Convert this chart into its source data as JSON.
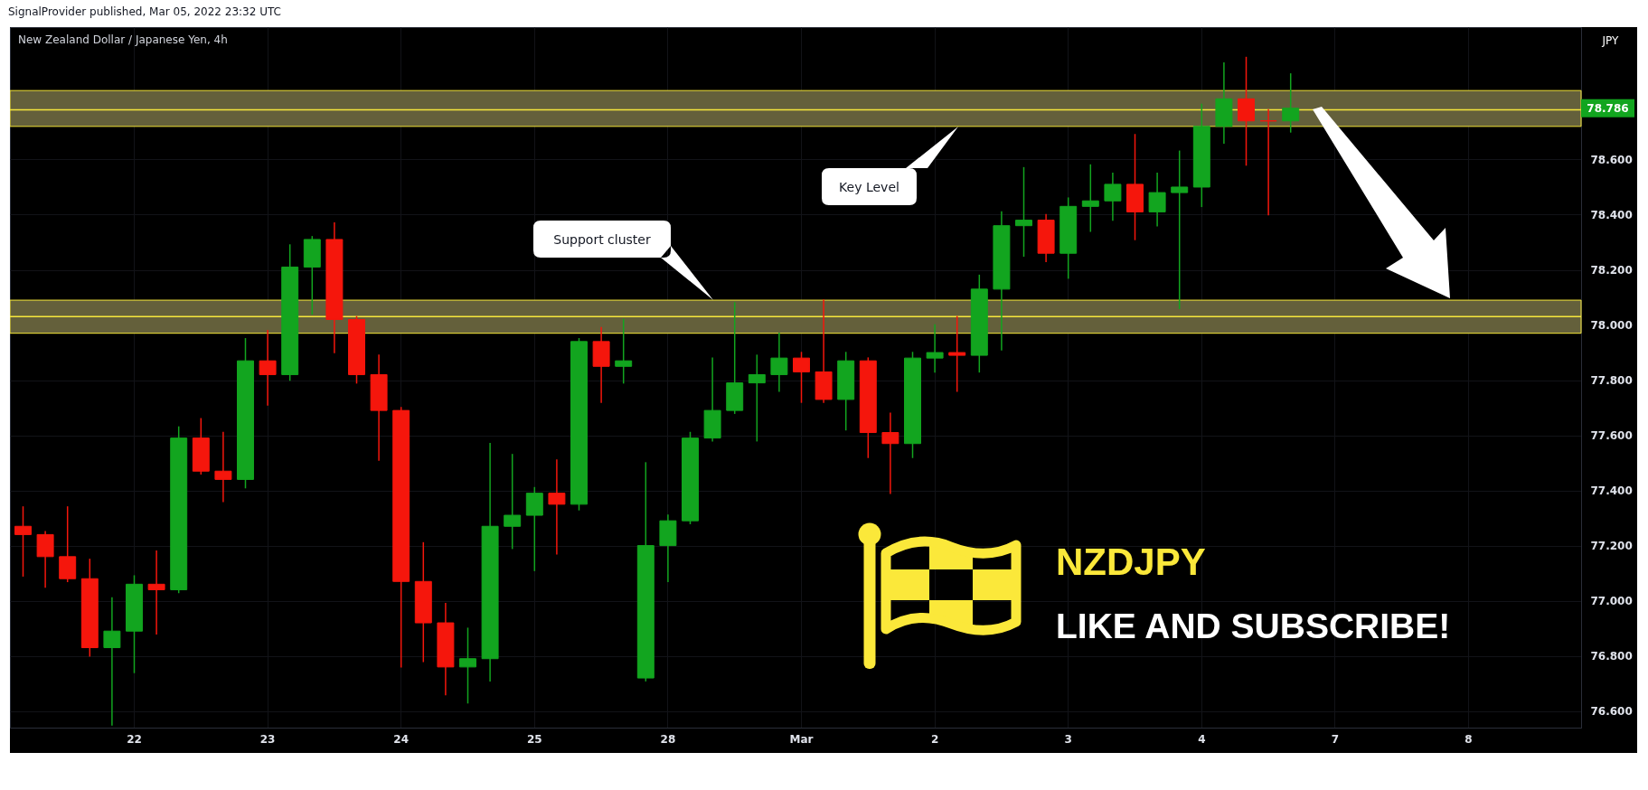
{
  "chart_data": {
    "type": "candlestick",
    "title": "New Zealand Dollar / Japanese Yen, 4h",
    "ylabel": "JPY",
    "annotations": [
      "SignalProvider published, Mar 05, 2022 23:32 UTC",
      "Support cluster",
      "Key Level",
      "NZDJPY",
      "LIKE AND SUBSCRIBE!",
      "78.786"
    ],
    "categories": [
      null,
      null,
      null,
      null,
      null,
      "22",
      null,
      null,
      null,
      null,
      null,
      "23",
      null,
      null,
      null,
      null,
      null,
      "24",
      null,
      null,
      null,
      null,
      null,
      "25",
      null,
      null,
      null,
      null,
      null,
      "28",
      null,
      null,
      null,
      null,
      null,
      "Mar",
      null,
      null,
      null,
      null,
      null,
      "2",
      null,
      null,
      null,
      null,
      null,
      "3",
      null,
      null,
      null,
      null,
      null,
      "4",
      null,
      null,
      null,
      null,
      null,
      "7",
      null,
      null,
      null,
      null,
      null,
      "8",
      null,
      null,
      null,
      null
    ],
    "ohlc": [
      [
        77.27,
        77.34,
        77.09,
        77.24
      ],
      [
        77.24,
        77.25,
        77.05,
        77.16
      ],
      [
        77.16,
        77.34,
        77.07,
        77.08
      ],
      [
        77.08,
        77.15,
        76.8,
        76.83
      ],
      [
        76.83,
        77.01,
        76.55,
        76.89
      ],
      [
        76.89,
        77.09,
        76.74,
        77.06
      ],
      [
        77.06,
        77.18,
        76.88,
        77.04
      ],
      [
        77.04,
        77.63,
        77.03,
        77.59
      ],
      [
        77.59,
        77.66,
        77.46,
        77.47
      ],
      [
        77.47,
        77.61,
        77.36,
        77.44
      ],
      [
        77.44,
        77.95,
        77.41,
        77.87
      ],
      [
        77.87,
        77.98,
        77.71,
        77.82
      ],
      [
        77.82,
        78.29,
        77.8,
        78.21
      ],
      [
        78.21,
        78.32,
        78.04,
        78.31
      ],
      [
        78.31,
        78.37,
        77.9,
        78.02
      ],
      [
        78.02,
        78.03,
        77.79,
        77.82
      ],
      [
        77.82,
        77.89,
        77.51,
        77.69
      ],
      [
        77.69,
        77.7,
        76.76,
        77.07
      ],
      [
        77.07,
        77.21,
        76.78,
        76.92
      ],
      [
        76.92,
        76.99,
        76.66,
        76.76
      ],
      [
        76.76,
        76.9,
        76.63,
        76.79
      ],
      [
        76.79,
        77.57,
        76.71,
        77.27
      ],
      [
        77.27,
        77.53,
        77.19,
        77.31
      ],
      [
        77.31,
        77.41,
        77.11,
        77.39
      ],
      [
        77.39,
        77.51,
        77.17,
        77.35
      ],
      [
        77.35,
        77.95,
        77.33,
        77.94
      ],
      [
        77.94,
        77.99,
        77.72,
        77.85
      ],
      [
        77.85,
        78.02,
        77.79,
        77.87
      ],
      [
        76.72,
        77.5,
        76.71,
        77.2
      ],
      [
        77.2,
        77.31,
        77.07,
        77.29
      ],
      [
        77.29,
        77.61,
        77.28,
        77.59
      ],
      [
        77.59,
        77.88,
        77.58,
        77.69
      ],
      [
        77.69,
        78.08,
        77.68,
        77.79
      ],
      [
        77.79,
        77.89,
        77.58,
        77.82
      ],
      [
        77.82,
        77.97,
        77.76,
        77.88
      ],
      [
        77.88,
        77.9,
        77.72,
        77.83
      ],
      [
        77.83,
        78.09,
        77.72,
        77.73
      ],
      [
        77.73,
        77.9,
        77.62,
        77.87
      ],
      [
        77.87,
        77.88,
        77.52,
        77.61
      ],
      [
        77.61,
        77.68,
        77.39,
        77.57
      ],
      [
        77.57,
        77.9,
        77.52,
        77.88
      ],
      [
        77.88,
        78.0,
        77.83,
        77.9
      ],
      [
        77.9,
        78.03,
        77.76,
        77.89
      ],
      [
        77.89,
        78.18,
        77.83,
        78.13
      ],
      [
        78.13,
        78.41,
        77.91,
        78.36
      ],
      [
        78.36,
        78.57,
        78.25,
        78.38
      ],
      [
        78.38,
        78.4,
        78.23,
        78.26
      ],
      [
        78.26,
        78.46,
        78.17,
        78.43
      ],
      [
        78.43,
        78.58,
        78.34,
        78.45
      ],
      [
        78.45,
        78.55,
        78.38,
        78.51
      ],
      [
        78.51,
        78.69,
        78.31,
        78.41
      ],
      [
        78.41,
        78.55,
        78.36,
        78.48
      ],
      [
        78.48,
        78.63,
        78.06,
        78.5
      ],
      [
        78.5,
        78.8,
        78.43,
        78.72
      ],
      [
        78.72,
        78.95,
        78.66,
        78.82
      ],
      [
        78.82,
        78.97,
        78.58,
        78.74
      ],
      [
        78.74,
        78.78,
        78.4,
        78.74
      ],
      [
        78.74,
        78.91,
        78.7,
        78.786
      ],
      null,
      null,
      null,
      null,
      null,
      null,
      null,
      null,
      null,
      null,
      null,
      null
    ],
    "colors": [
      "#f5160c",
      "#f5160c",
      "#f5160c",
      "#f5160c",
      "#12a51f",
      "#12a51f",
      "#f5160c",
      "#12a51f",
      "#f5160c",
      "#f5160c",
      "#12a51f",
      "#f5160c",
      "#12a51f",
      "#12a51f",
      "#f5160c",
      "#f5160c",
      "#f5160c",
      "#f5160c",
      "#f5160c",
      "#f5160c",
      "#12a51f",
      "#12a51f",
      "#12a51f",
      "#12a51f",
      "#f5160c",
      "#12a51f",
      "#f5160c",
      "#12a51f",
      "#12a51f",
      "#12a51f",
      "#12a51f",
      "#12a51f",
      "#12a51f",
      "#12a51f",
      "#12a51f",
      "#f5160c",
      "#f5160c",
      "#12a51f",
      "#f5160c",
      "#f5160c",
      "#12a51f",
      "#12a51f",
      "#f5160c",
      "#12a51f",
      "#12a51f",
      "#12a51f",
      "#f5160c",
      "#12a51f",
      "#12a51f",
      "#12a51f",
      "#f5160c",
      "#12a51f",
      "#12a51f",
      "#12a51f",
      "#12a51f",
      "#f5160c",
      "#f5160c",
      "#12a51f",
      null,
      null,
      null,
      null,
      null,
      null,
      null,
      null,
      null,
      null,
      null,
      null
    ],
    "ylim": [
      76.54,
      79.08
    ],
    "yticks": [
      {
        "value": 76.6,
        "label": "76.600"
      },
      {
        "value": 76.8,
        "label": "76.800"
      },
      {
        "value": 77.0,
        "label": "77.000"
      },
      {
        "value": 77.2,
        "label": "77.200"
      },
      {
        "value": 77.4,
        "label": "77.400"
      },
      {
        "value": 77.6,
        "label": "77.600"
      },
      {
        "value": 77.8,
        "label": "77.800"
      },
      {
        "value": 78.0,
        "label": "78.000"
      },
      {
        "value": 78.2,
        "label": "78.200"
      },
      {
        "value": 78.4,
        "label": "78.400"
      },
      {
        "value": 78.6,
        "label": "78.600"
      }
    ],
    "ref_lines": [
      {
        "axis": "y",
        "value": 78.78,
        "color": "#f7e83c"
      },
      {
        "axis": "y",
        "value": 78.03,
        "color": "#f7e83c"
      }
    ],
    "bands": [
      {
        "axis": "y",
        "from": 78.72,
        "to": 78.85,
        "color": "#64603b"
      },
      {
        "axis": "y",
        "from": 77.97,
        "to": 78.09,
        "color": "#64603b"
      }
    ],
    "grid": true
  }
}
